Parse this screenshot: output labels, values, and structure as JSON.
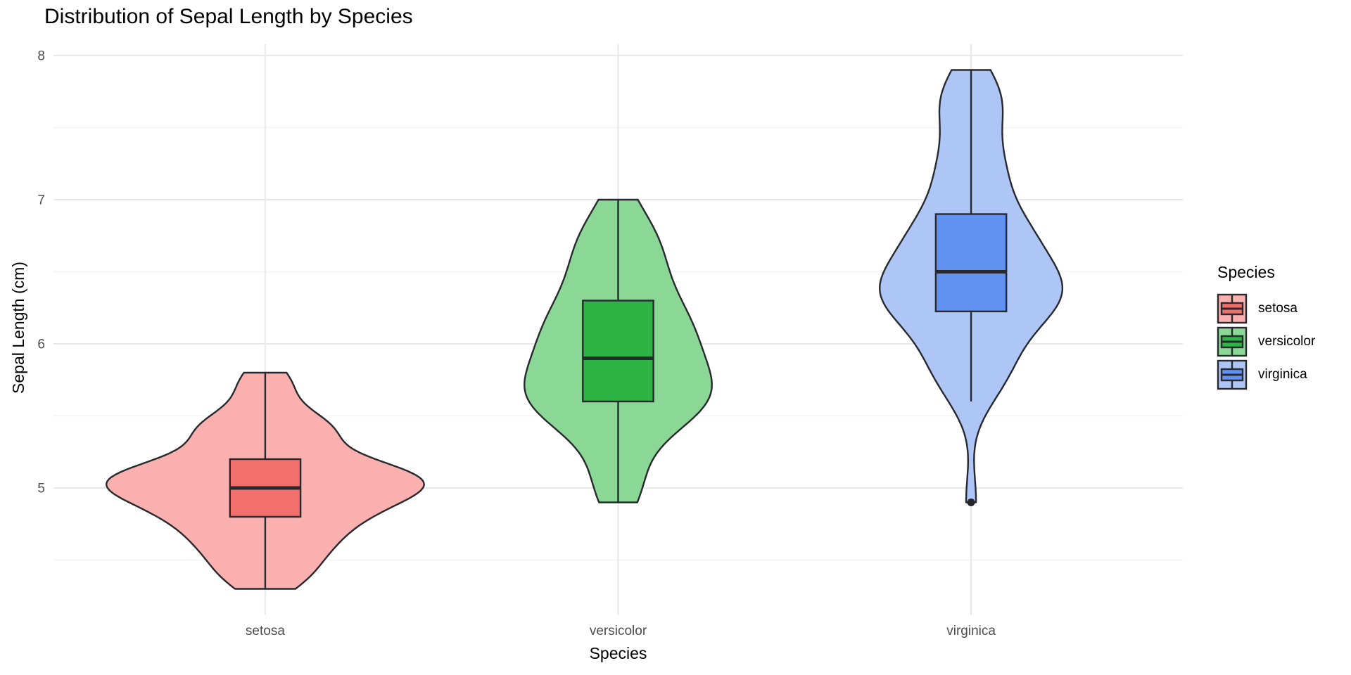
{
  "chart_data": {
    "type": "violin",
    "title": "Distribution of Sepal Length by Species",
    "xlabel": "Species",
    "ylabel": "Sepal Length (cm)",
    "categories": [
      "setosa",
      "versicolor",
      "virginica"
    ],
    "y_axis": {
      "major_ticks": [
        5,
        6,
        7,
        8
      ],
      "major_tick_labels": [
        "5",
        "6",
        "7",
        "8"
      ],
      "minor_ticks": [
        4.5,
        5.5,
        6.5,
        7.5
      ],
      "ylim": [
        4.12,
        8.08
      ]
    },
    "grid": {
      "major_color": "#e8e8e8",
      "minor_color": "#f3f3f3",
      "grid_on": true
    },
    "stroke_color": "#27292e",
    "outlier_color": "#222428",
    "tick_label_color": "#4d4d4d",
    "legend": {
      "title": "Species",
      "position": "right"
    },
    "series": [
      {
        "name": "setosa",
        "violin_fill": "#f9b0ae",
        "box_fill": "#f2706c",
        "values": [
          5.1,
          4.9,
          4.7,
          4.6,
          5.0,
          5.4,
          4.6,
          5.0,
          4.4,
          4.9,
          5.4,
          4.8,
          4.8,
          4.3,
          5.8,
          5.7,
          5.4,
          5.1,
          5.7,
          5.1,
          5.4,
          5.1,
          4.6,
          5.1,
          4.8,
          5.0,
          5.0,
          5.2,
          5.2,
          4.7,
          4.8,
          5.4,
          5.2,
          5.5,
          4.9,
          5.0,
          5.5,
          4.9,
          4.4,
          5.1,
          5.0,
          4.5,
          4.4,
          5.0,
          5.1,
          4.8,
          5.1,
          4.6,
          5.3,
          5.0
        ],
        "box_stats": {
          "q1": 4.8,
          "median": 5.0,
          "q3": 5.2,
          "whisker_low": 4.3,
          "whisker_high": 5.8,
          "outliers": []
        }
      },
      {
        "name": "versicolor",
        "violin_fill": "#8bd796",
        "box_fill": "#2eb345",
        "values": [
          7.0,
          6.4,
          6.9,
          5.5,
          6.5,
          5.7,
          6.3,
          4.9,
          6.6,
          5.2,
          5.0,
          5.9,
          6.0,
          6.1,
          5.6,
          6.7,
          5.6,
          5.8,
          6.2,
          5.6,
          5.9,
          6.1,
          6.3,
          6.1,
          6.4,
          6.6,
          6.8,
          6.7,
          6.0,
          5.7,
          5.5,
          5.5,
          5.8,
          6.0,
          5.4,
          6.0,
          6.7,
          6.3,
          5.6,
          5.5,
          5.5,
          6.1,
          5.8,
          5.0,
          5.6,
          5.7,
          5.7,
          6.2,
          5.1,
          5.7
        ],
        "box_stats": {
          "q1": 5.6,
          "median": 5.9,
          "q3": 6.3,
          "whisker_low": 4.9,
          "whisker_high": 7.0,
          "outliers": []
        }
      },
      {
        "name": "virginica",
        "violin_fill": "#adc6f5",
        "box_fill": "#6191f1",
        "values": [
          6.3,
          5.8,
          7.1,
          6.3,
          6.5,
          7.6,
          4.9,
          7.3,
          6.7,
          7.2,
          6.5,
          6.4,
          6.8,
          5.7,
          5.8,
          6.4,
          6.5,
          7.7,
          7.7,
          6.0,
          6.9,
          5.6,
          7.7,
          6.3,
          6.7,
          7.2,
          6.2,
          6.1,
          6.4,
          7.2,
          7.4,
          7.9,
          6.4,
          6.3,
          6.1,
          7.7,
          6.3,
          6.4,
          6.0,
          6.9,
          6.7,
          6.9,
          5.8,
          6.8,
          6.7,
          6.7,
          6.3,
          6.5,
          6.2,
          5.9
        ],
        "box_stats": {
          "q1": 6.225,
          "median": 6.5,
          "q3": 6.9,
          "whisker_low": 5.6,
          "whisker_high": 7.9,
          "outliers": [
            4.9
          ]
        }
      }
    ]
  }
}
